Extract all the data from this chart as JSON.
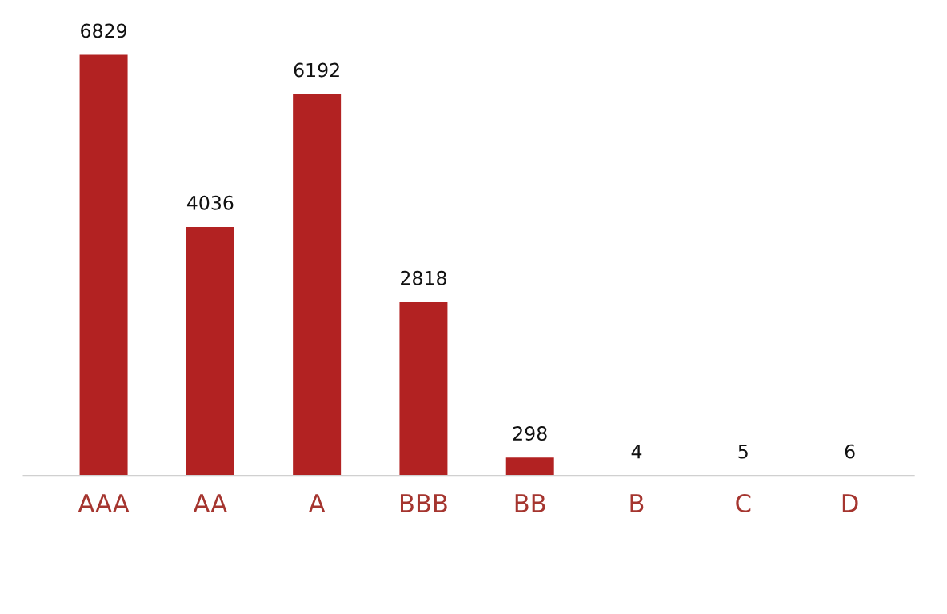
{
  "chart_data": {
    "type": "bar",
    "categories": [
      "AAA",
      "AA",
      "A",
      "BBB",
      "BB",
      "B",
      "C",
      "D"
    ],
    "values": [
      6829,
      4036,
      6192,
      2818,
      298,
      4,
      5,
      6
    ],
    "color": "#b22222",
    "data_labels": true,
    "grid": false,
    "legend": false
  }
}
